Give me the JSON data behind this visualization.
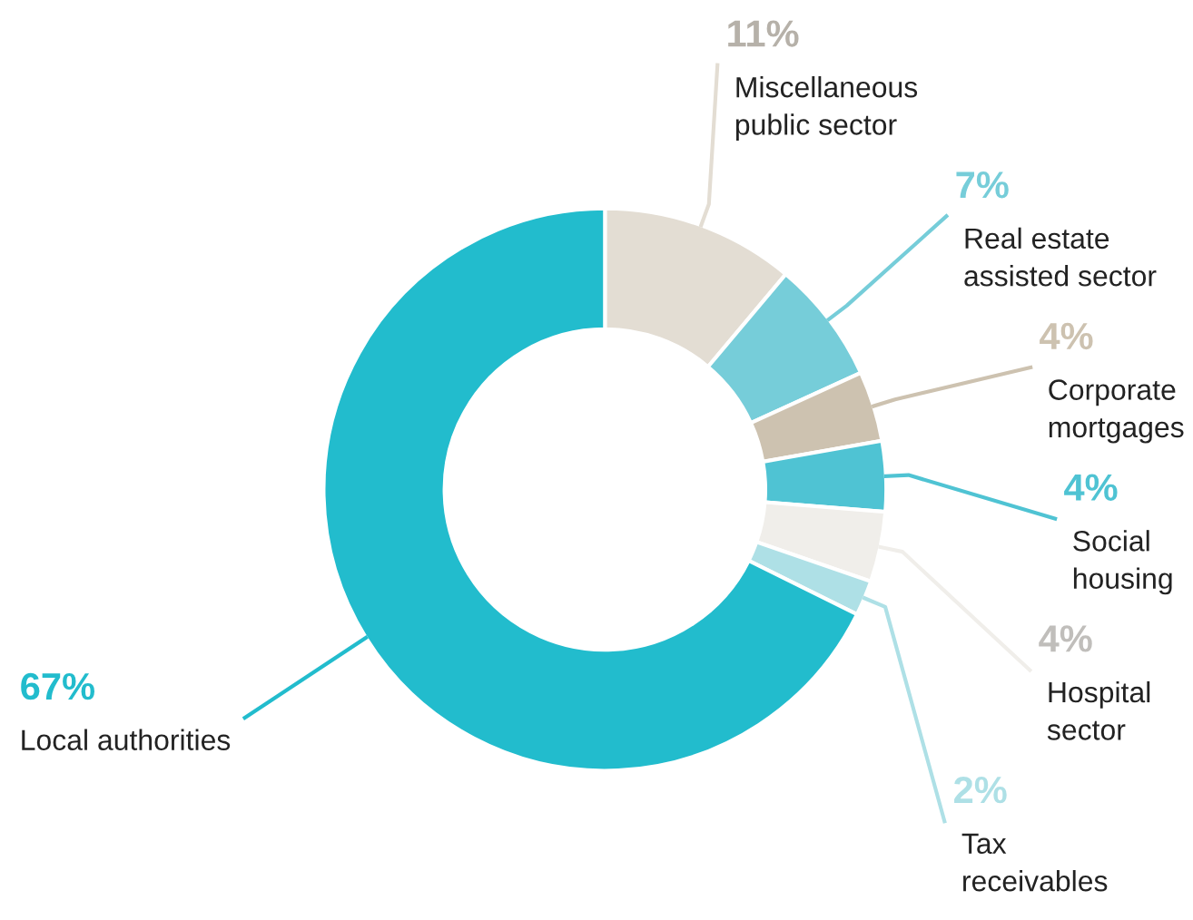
{
  "chart_data": {
    "type": "donut",
    "categories": [
      "Miscellaneous\npublic sector",
      "Real estate\nassisted sector",
      "Corporate\nmortgages",
      "Social\nhousing",
      "Hospital\nsector",
      "Tax\nreceivables",
      "Local authorities"
    ],
    "values": [
      11,
      7,
      4,
      4,
      4,
      2,
      67
    ],
    "colors": [
      "#e3ddd3",
      "#76cdd9",
      "#cdc2b0",
      "#4fc3d3",
      "#f0eeea",
      "#aee0e6",
      "#22bccd"
    ],
    "value_labels": [
      "11%",
      "7%",
      "4%",
      "4%",
      "4%",
      "2%",
      "67%"
    ],
    "legend": false
  }
}
